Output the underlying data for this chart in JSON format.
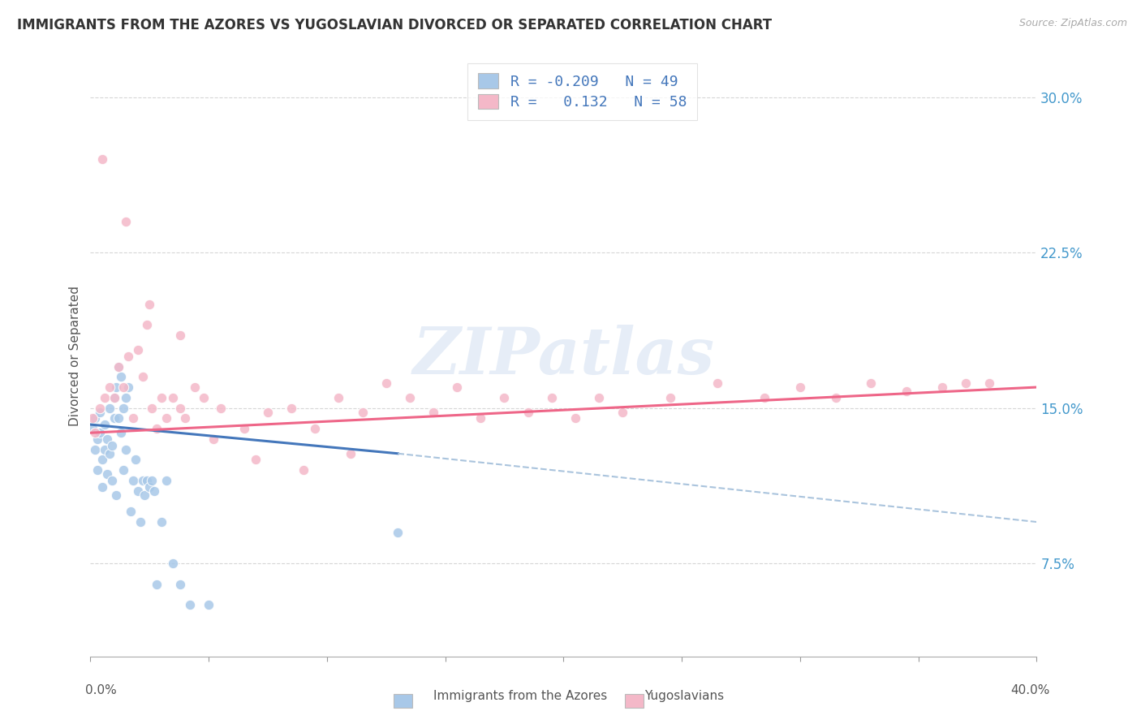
{
  "title": "IMMIGRANTS FROM THE AZORES VS YUGOSLAVIAN DIVORCED OR SEPARATED CORRELATION CHART",
  "source": "Source: ZipAtlas.com",
  "ylabel": "Divorced or Separated",
  "yticks": [
    0.075,
    0.15,
    0.225,
    0.3
  ],
  "ytick_labels": [
    "7.5%",
    "15.0%",
    "22.5%",
    "30.0%"
  ],
  "xlim": [
    0.0,
    0.4
  ],
  "ylim": [
    0.03,
    0.32
  ],
  "legend_R1": "-0.209",
  "legend_N1": "49",
  "legend_R2": "0.132",
  "legend_N2": "58",
  "blue_color": "#a8c8e8",
  "pink_color": "#f4b8c8",
  "blue_line_color": "#4477bb",
  "pink_line_color": "#ee6688",
  "blue_line_start_x": 0.0,
  "blue_line_start_y": 0.142,
  "blue_line_solid_end_x": 0.13,
  "blue_line_solid_end_y": 0.128,
  "blue_line_dash_end_x": 0.4,
  "blue_line_dash_end_y": 0.095,
  "pink_line_start_x": 0.0,
  "pink_line_start_y": 0.138,
  "pink_line_end_x": 0.4,
  "pink_line_end_y": 0.16,
  "watermark": "ZIPatlas",
  "blue_scatter_x": [
    0.001,
    0.002,
    0.002,
    0.003,
    0.003,
    0.004,
    0.004,
    0.005,
    0.005,
    0.006,
    0.006,
    0.007,
    0.007,
    0.008,
    0.008,
    0.009,
    0.009,
    0.01,
    0.01,
    0.011,
    0.011,
    0.012,
    0.012,
    0.013,
    0.013,
    0.014,
    0.014,
    0.015,
    0.015,
    0.016,
    0.017,
    0.018,
    0.019,
    0.02,
    0.021,
    0.022,
    0.023,
    0.024,
    0.025,
    0.026,
    0.027,
    0.028,
    0.03,
    0.032,
    0.035,
    0.038,
    0.042,
    0.05,
    0.13
  ],
  "blue_scatter_y": [
    0.14,
    0.145,
    0.13,
    0.135,
    0.12,
    0.148,
    0.138,
    0.125,
    0.112,
    0.142,
    0.13,
    0.135,
    0.118,
    0.15,
    0.128,
    0.132,
    0.115,
    0.155,
    0.145,
    0.16,
    0.108,
    0.145,
    0.17,
    0.165,
    0.138,
    0.15,
    0.12,
    0.155,
    0.13,
    0.16,
    0.1,
    0.115,
    0.125,
    0.11,
    0.095,
    0.115,
    0.108,
    0.115,
    0.112,
    0.115,
    0.11,
    0.065,
    0.095,
    0.115,
    0.075,
    0.065,
    0.055,
    0.055,
    0.09
  ],
  "pink_scatter_x": [
    0.001,
    0.002,
    0.004,
    0.006,
    0.008,
    0.01,
    0.012,
    0.014,
    0.016,
    0.018,
    0.02,
    0.022,
    0.024,
    0.026,
    0.028,
    0.03,
    0.032,
    0.035,
    0.038,
    0.04,
    0.044,
    0.048,
    0.055,
    0.065,
    0.075,
    0.085,
    0.095,
    0.105,
    0.115,
    0.125,
    0.135,
    0.145,
    0.155,
    0.165,
    0.175,
    0.185,
    0.195,
    0.205,
    0.215,
    0.225,
    0.245,
    0.265,
    0.285,
    0.3,
    0.315,
    0.33,
    0.345,
    0.36,
    0.37,
    0.38,
    0.005,
    0.015,
    0.025,
    0.038,
    0.052,
    0.07,
    0.09,
    0.11
  ],
  "pink_scatter_y": [
    0.145,
    0.138,
    0.15,
    0.155,
    0.16,
    0.155,
    0.17,
    0.16,
    0.175,
    0.145,
    0.178,
    0.165,
    0.19,
    0.15,
    0.14,
    0.155,
    0.145,
    0.155,
    0.15,
    0.145,
    0.16,
    0.155,
    0.15,
    0.14,
    0.148,
    0.15,
    0.14,
    0.155,
    0.148,
    0.162,
    0.155,
    0.148,
    0.16,
    0.145,
    0.155,
    0.148,
    0.155,
    0.145,
    0.155,
    0.148,
    0.155,
    0.162,
    0.155,
    0.16,
    0.155,
    0.162,
    0.158,
    0.16,
    0.162,
    0.162,
    0.27,
    0.24,
    0.2,
    0.185,
    0.135,
    0.125,
    0.12,
    0.128
  ]
}
